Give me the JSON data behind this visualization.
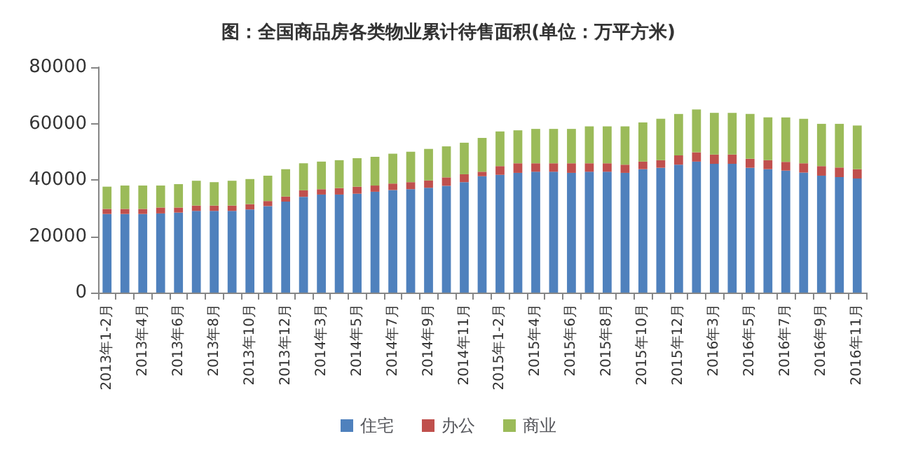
{
  "chart_data": {
    "type": "bar",
    "title": "图：全国商品房各类物业累计待售面积(单位：万平方米)",
    "stacked": true,
    "legend": "bottom",
    "grid": false,
    "categories": [
      "2013年1-2月",
      null,
      "2013年4月",
      null,
      "2013年6月",
      null,
      "2013年8月",
      null,
      "2013年10月",
      null,
      "2013年12月",
      null,
      "2014年3月",
      null,
      "2014年5月",
      null,
      "2014年7月",
      null,
      "2014年9月",
      null,
      "2014年11月",
      null,
      "2015年1-2月",
      null,
      "2015年4月",
      null,
      "2015年6月",
      null,
      "2015年8月",
      null,
      "2015年10月",
      null,
      "2015年12月",
      null,
      "2016年3月",
      null,
      "2016年5月",
      null,
      "2016年7月",
      null,
      "2016年9月",
      null,
      "2016年11月"
    ],
    "ylim": [
      0,
      80000
    ],
    "yticks": [
      0,
      20000,
      40000,
      60000,
      80000
    ],
    "series": [
      {
        "name": "住宅",
        "color": "#4f81bd",
        "values": [
          27900,
          27900,
          27900,
          28100,
          28400,
          29000,
          29000,
          29000,
          29500,
          30700,
          32300,
          34000,
          34800,
          34800,
          35100,
          35800,
          36400,
          36700,
          37200,
          37900,
          39200,
          41300,
          41800,
          42500,
          42900,
          42900,
          42500,
          42900,
          42900,
          42500,
          43800,
          44300,
          45400,
          46500,
          45700,
          45700,
          44300,
          43800,
          43300,
          42600,
          41500,
          41000,
          40500
        ]
      },
      {
        "name": "办公",
        "color": "#c0504d",
        "values": [
          1800,
          1800,
          1800,
          2100,
          1800,
          1900,
          1900,
          1900,
          1900,
          1800,
          1800,
          2300,
          1900,
          2300,
          2500,
          2200,
          2300,
          2500,
          2600,
          3000,
          2800,
          1600,
          3100,
          3400,
          3000,
          3000,
          3400,
          3000,
          3000,
          2900,
          2700,
          2700,
          3300,
          3300,
          3300,
          3300,
          3200,
          3200,
          3100,
          3300,
          3400,
          3400,
          3300
        ]
      },
      {
        "name": "商业",
        "color": "#9bbb59",
        "values": [
          7900,
          8300,
          8300,
          7800,
          8300,
          8800,
          8300,
          8800,
          8900,
          9000,
          9700,
          9600,
          9800,
          9900,
          10100,
          10200,
          10600,
          10800,
          11200,
          11000,
          11200,
          12000,
          12300,
          11700,
          12200,
          12200,
          12200,
          13100,
          13100,
          13600,
          13900,
          14700,
          14700,
          15200,
          14800,
          14800,
          15900,
          15200,
          15800,
          15800,
          15000,
          15500,
          15500
        ]
      }
    ]
  }
}
